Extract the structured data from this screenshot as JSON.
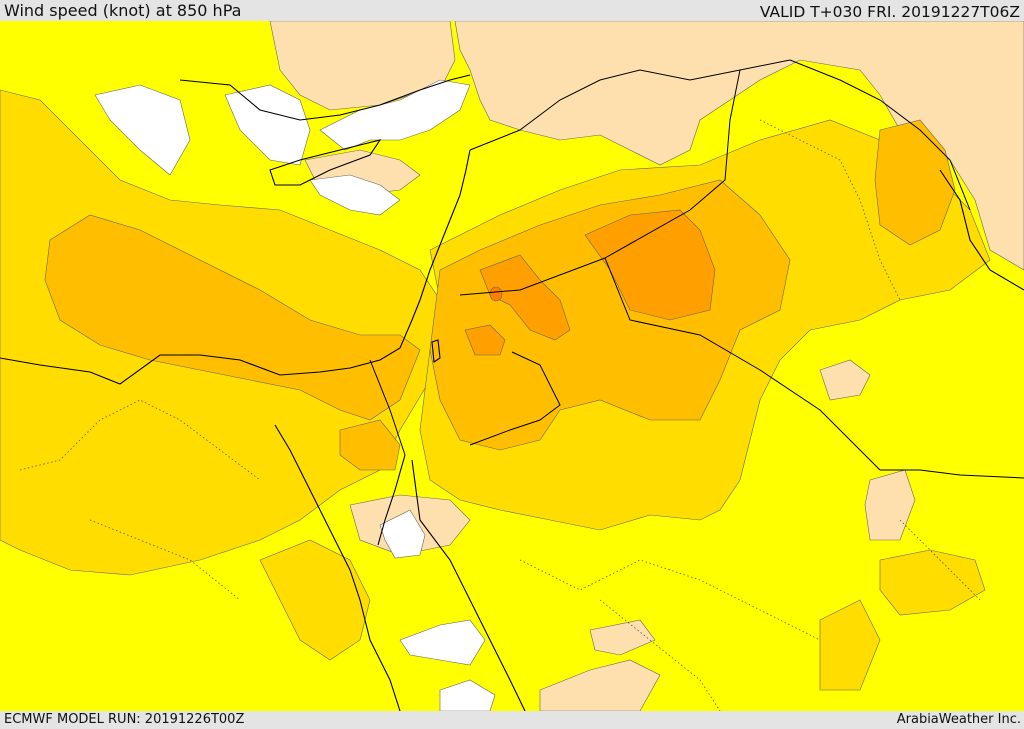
{
  "header": {
    "title": "Wind speed (knot) at 850 hPa",
    "valid": "VALID T+030 FRI. 20191227T06Z"
  },
  "footer": {
    "model_run": "ECMWF MODEL RUN: 20191226T00Z",
    "credit": "ArabiaWeather Inc."
  },
  "colors": {
    "below_lowest_band": "#ffffff",
    "band_1": "#fde0ad",
    "band_2": "#ffff00",
    "band_3": "#ffdd00",
    "band_4": "#ffbf00",
    "band_5": "#ff9f00",
    "band_6": "#ff7e00",
    "coastline": "#000000",
    "border": "#000000",
    "admin_boundary": "#555555"
  }
}
